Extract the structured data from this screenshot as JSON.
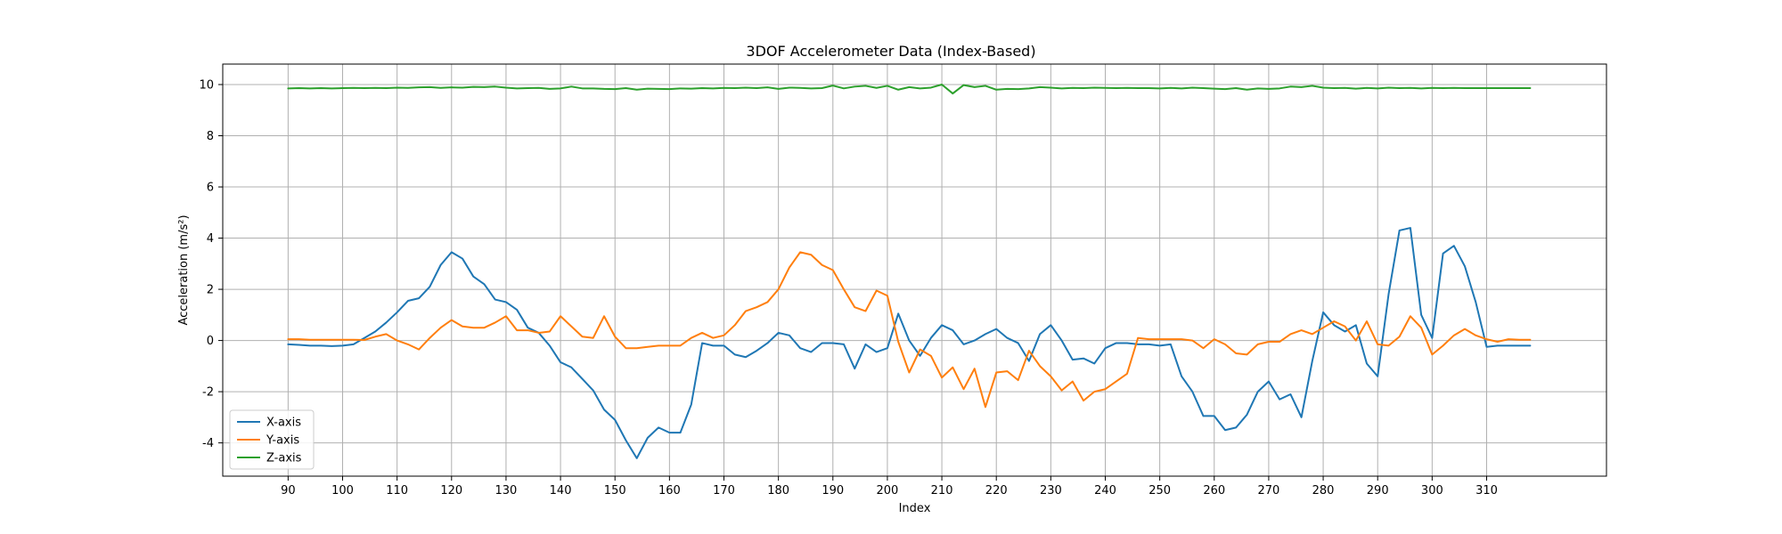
{
  "chart_data": {
    "type": "line",
    "title": "3DOF Accelerometer Data (Index-Based)",
    "xlabel": "Index",
    "ylabel": "Acceleration (m/s²)",
    "xlim": [
      78,
      332
    ],
    "ylim": [
      -5.3,
      10.8
    ],
    "xticks": [
      90,
      100,
      110,
      120,
      130,
      140,
      150,
      160,
      170,
      180,
      190,
      200,
      210,
      220,
      230,
      240,
      250,
      260,
      270,
      280,
      290,
      300,
      310
    ],
    "yticks": [
      -4,
      -2,
      0,
      2,
      4,
      6,
      8,
      10
    ],
    "grid": true,
    "legend_position": "lower-left",
    "x": [
      90,
      92,
      94,
      96,
      98,
      100,
      102,
      104,
      106,
      108,
      110,
      112,
      114,
      116,
      118,
      120,
      122,
      124,
      126,
      128,
      130,
      132,
      134,
      136,
      138,
      140,
      142,
      144,
      146,
      148,
      150,
      152,
      154,
      156,
      158,
      160,
      162,
      164,
      166,
      168,
      170,
      172,
      174,
      176,
      178,
      180,
      182,
      184,
      186,
      188,
      190,
      192,
      194,
      196,
      198,
      200,
      202,
      204,
      206,
      208,
      210,
      212,
      214,
      216,
      218,
      220,
      222,
      224,
      226,
      228,
      230,
      232,
      234,
      236,
      238,
      240,
      242,
      244,
      246,
      248,
      250,
      252,
      254,
      256,
      258,
      260,
      262,
      264,
      266,
      268,
      270,
      272,
      274,
      276,
      278,
      280,
      282,
      284,
      286,
      288,
      290,
      292,
      294,
      296,
      298,
      300,
      302,
      304,
      306,
      308,
      310,
      312,
      314,
      316,
      318
    ],
    "series": [
      {
        "name": "X-axis",
        "color": "#1f77b4",
        "values": [
          -0.15,
          -0.17,
          -0.2,
          -0.2,
          -0.22,
          -0.2,
          -0.15,
          0.1,
          0.35,
          0.7,
          1.1,
          1.55,
          1.65,
          2.1,
          2.95,
          3.45,
          3.2,
          2.5,
          2.2,
          1.6,
          1.5,
          1.2,
          0.5,
          0.3,
          -0.2,
          -0.85,
          -1.05,
          -1.5,
          -1.95,
          -2.7,
          -3.1,
          -3.9,
          -4.6,
          -3.8,
          -3.4,
          -3.6,
          -3.6,
          -2.5,
          -0.1,
          -0.2,
          -0.2,
          -0.55,
          -0.65,
          -0.4,
          -0.1,
          0.3,
          0.2,
          -0.3,
          -0.45,
          -0.1,
          -0.1,
          -0.15,
          -1.1,
          -0.15,
          -0.45,
          -0.3,
          1.05,
          0.0,
          -0.6,
          0.1,
          0.6,
          0.4,
          -0.15,
          0.0,
          0.25,
          0.45,
          0.1,
          -0.1,
          -0.8,
          0.25,
          0.6,
          0.0,
          -0.75,
          -0.7,
          -0.9,
          -0.3,
          -0.1,
          -0.1,
          -0.15,
          -0.15,
          -0.2,
          -0.15,
          -1.4,
          -2.0,
          -2.95,
          -2.95,
          -3.5,
          -3.4,
          -2.9,
          -2.0,
          -1.6,
          -2.3,
          -2.1,
          -3.0,
          -0.8,
          1.1,
          0.6,
          0.35,
          0.6,
          -0.9,
          -1.4,
          1.8,
          4.3,
          4.4,
          1.0,
          0.1,
          3.4,
          3.7,
          2.9,
          1.5,
          -0.25,
          -0.2,
          -0.2,
          -0.2,
          -0.2
        ]
      },
      {
        "name": "Y-axis",
        "color": "#ff7f0e",
        "values": [
          0.05,
          0.05,
          0.03,
          0.03,
          0.03,
          0.03,
          0.03,
          0.02,
          0.15,
          0.25,
          0.0,
          -0.15,
          -0.35,
          0.1,
          0.5,
          0.8,
          0.55,
          0.5,
          0.5,
          0.7,
          0.95,
          0.4,
          0.4,
          0.3,
          0.35,
          0.95,
          0.55,
          0.15,
          0.1,
          0.95,
          0.15,
          -0.3,
          -0.3,
          -0.25,
          -0.2,
          -0.2,
          -0.2,
          0.1,
          0.3,
          0.1,
          0.2,
          0.6,
          1.15,
          1.3,
          1.5,
          2.0,
          2.85,
          3.45,
          3.35,
          2.95,
          2.75,
          2.0,
          1.3,
          1.15,
          1.95,
          1.75,
          -0.05,
          -1.25,
          -0.35,
          -0.6,
          -1.45,
          -1.05,
          -1.9,
          -1.1,
          -2.6,
          -1.25,
          -1.2,
          -1.55,
          -0.4,
          -1.0,
          -1.4,
          -1.95,
          -1.6,
          -2.35,
          -2.0,
          -1.9,
          -1.6,
          -1.3,
          0.1,
          0.05,
          0.05,
          0.05,
          0.05,
          0.0,
          -0.3,
          0.05,
          -0.15,
          -0.5,
          -0.55,
          -0.15,
          -0.05,
          -0.05,
          0.25,
          0.4,
          0.25,
          0.5,
          0.75,
          0.55,
          0.0,
          0.75,
          -0.15,
          -0.2,
          0.15,
          0.95,
          0.5,
          -0.55,
          -0.2,
          0.2,
          0.45,
          0.2,
          0.05,
          -0.05,
          0.05,
          0.03,
          0.03
        ]
      },
      {
        "name": "Z-axis",
        "color": "#2ca02c",
        "values": [
          9.85,
          9.86,
          9.85,
          9.86,
          9.85,
          9.86,
          9.87,
          9.86,
          9.87,
          9.86,
          9.88,
          9.87,
          9.89,
          9.9,
          9.87,
          9.89,
          9.88,
          9.91,
          9.9,
          9.92,
          9.88,
          9.85,
          9.86,
          9.87,
          9.83,
          9.85,
          9.92,
          9.85,
          9.85,
          9.83,
          9.82,
          9.86,
          9.8,
          9.84,
          9.83,
          9.82,
          9.85,
          9.84,
          9.86,
          9.85,
          9.87,
          9.86,
          9.88,
          9.86,
          9.89,
          9.83,
          9.88,
          9.87,
          9.85,
          9.86,
          9.96,
          9.85,
          9.92,
          9.95,
          9.87,
          9.95,
          9.8,
          9.9,
          9.85,
          9.88,
          10.0,
          9.65,
          9.98,
          9.9,
          9.95,
          9.8,
          9.83,
          9.82,
          9.85,
          9.9,
          9.88,
          9.85,
          9.87,
          9.86,
          9.88,
          9.87,
          9.86,
          9.87,
          9.86,
          9.86,
          9.85,
          9.87,
          9.85,
          9.88,
          9.86,
          9.84,
          9.82,
          9.86,
          9.8,
          9.85,
          9.83,
          9.85,
          9.92,
          9.9,
          9.95,
          9.88,
          9.86,
          9.87,
          9.84,
          9.87,
          9.85,
          9.88,
          9.86,
          9.87,
          9.85,
          9.87,
          9.86,
          9.87,
          9.86,
          9.86,
          9.86,
          9.86,
          9.86,
          9.86,
          9.86
        ]
      }
    ]
  }
}
